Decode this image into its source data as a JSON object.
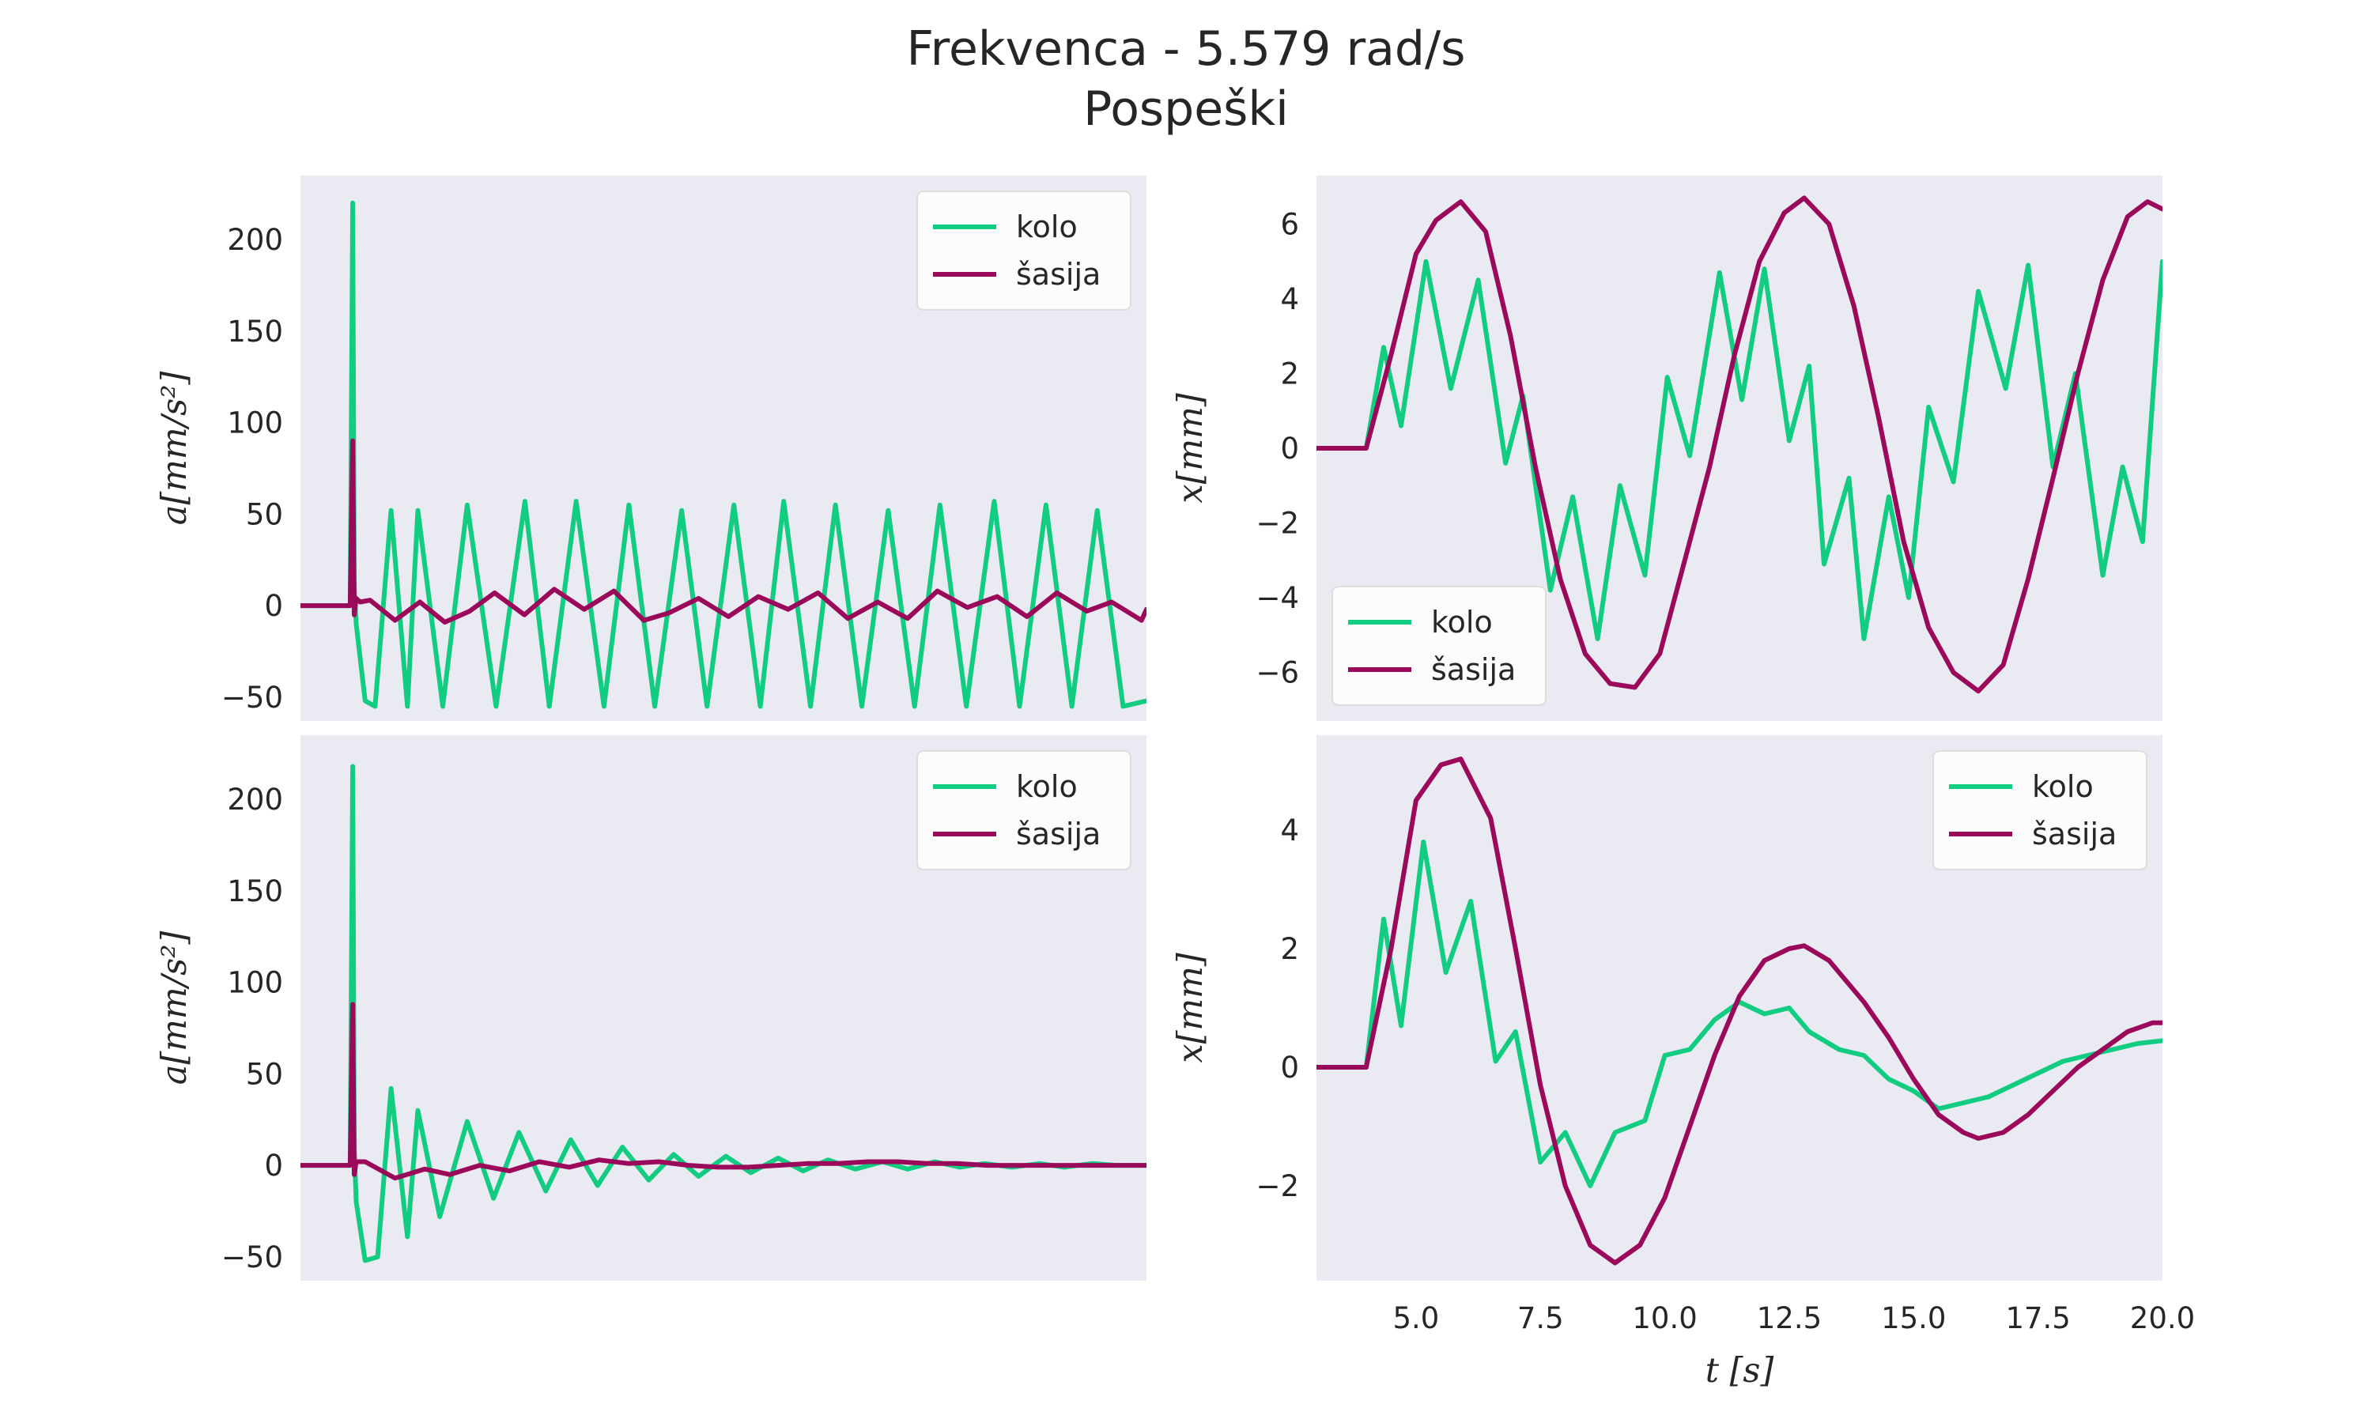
{
  "figure": {
    "title_line1": "Frekvenca - 5.579 rad/s",
    "title_line2": "Pospeški"
  },
  "colors": {
    "kolo": "#12cc82",
    "sasija": "#9b0a5a",
    "panel_bg": "#eaeaf2",
    "text": "#262626"
  },
  "chart_data": [
    {
      "type": "line",
      "panel": "top-left",
      "ylabel": "a[mm/s²]",
      "xlim": [
        3,
        20
      ],
      "ylim": [
        -63,
        235
      ],
      "yticks": [
        -50,
        0,
        50,
        100,
        150,
        200
      ],
      "ytick_labels": [
        "−50",
        "0",
        "50",
        "100",
        "150",
        "200"
      ],
      "legend": "top-right",
      "grid": false,
      "series": [
        {
          "name": "kolo",
          "color": "#12cc82",
          "x": [
            3.0,
            4.0,
            4.05,
            4.08,
            4.12,
            4.3,
            4.5,
            4.82,
            5.15,
            5.36,
            5.86,
            6.35,
            6.93,
            7.51,
            8.0,
            8.54,
            9.1,
            9.6,
            10.12,
            10.66,
            11.17,
            11.71,
            12.24,
            12.71,
            13.25,
            13.75,
            14.28,
            14.81,
            15.34,
            15.85,
            16.38,
            16.94,
            17.45,
            17.98,
            18.5,
            19.01,
            19.53,
            20.0
          ],
          "y": [
            0,
            0,
            220,
            10,
            -10,
            -52,
            -55,
            52,
            -55,
            52,
            -55,
            55,
            -55,
            57,
            -55,
            57,
            -55,
            55,
            -55,
            52,
            -55,
            55,
            -55,
            57,
            -55,
            55,
            -55,
            52,
            -55,
            55,
            -55,
            57,
            -55,
            55,
            -55,
            52,
            -55,
            -52
          ]
        },
        {
          "name": "šasija",
          "color": "#9b0a5a",
          "x": [
            3.0,
            4.0,
            4.05,
            4.08,
            4.12,
            4.2,
            4.4,
            4.9,
            5.4,
            5.9,
            6.4,
            6.9,
            7.5,
            8.1,
            8.7,
            9.3,
            9.9,
            10.4,
            11.0,
            11.6,
            12.2,
            12.8,
            13.4,
            14.0,
            14.6,
            15.2,
            15.8,
            16.4,
            17.0,
            17.6,
            18.2,
            18.8,
            19.3,
            19.9,
            20.0
          ],
          "y": [
            0,
            0,
            90,
            -5,
            4,
            2,
            3,
            -8,
            2,
            -9,
            -3,
            7,
            -5,
            9,
            -2,
            8,
            -8,
            -4,
            4,
            -6,
            5,
            -2,
            7,
            -7,
            2,
            -7,
            8,
            -1,
            5,
            -6,
            7,
            -3,
            2,
            -8,
            -2
          ]
        }
      ]
    },
    {
      "type": "line",
      "panel": "top-right",
      "ylabel": "x[mm]",
      "xlim": [
        3,
        20
      ],
      "ylim": [
        -7.3,
        7.3
      ],
      "yticks": [
        -6,
        -4,
        -2,
        0,
        2,
        4,
        6
      ],
      "ytick_labels": [
        "−6",
        "−4",
        "−2",
        "0",
        "2",
        "4",
        "6"
      ],
      "legend": "lower-left",
      "grid": false,
      "series": [
        {
          "name": "kolo",
          "color": "#12cc82",
          "x": [
            3.0,
            4.0,
            4.35,
            4.7,
            5.2,
            5.7,
            6.25,
            6.8,
            7.15,
            7.7,
            8.15,
            8.65,
            9.1,
            9.6,
            10.05,
            10.5,
            11.1,
            11.55,
            12.0,
            12.5,
            12.9,
            13.2,
            13.7,
            14.0,
            14.5,
            14.9,
            15.3,
            15.8,
            16.3,
            16.85,
            17.3,
            17.8,
            18.25,
            18.8,
            19.2,
            19.6,
            20.0
          ],
          "y": [
            0,
            0,
            2.7,
            0.6,
            5.0,
            1.6,
            4.5,
            -0.4,
            1.4,
            -3.8,
            -1.3,
            -5.1,
            -1.0,
            -3.4,
            1.9,
            -0.2,
            4.7,
            1.3,
            4.8,
            0.2,
            2.2,
            -3.1,
            -0.8,
            -5.1,
            -1.3,
            -4.0,
            1.1,
            -0.9,
            4.2,
            1.6,
            4.9,
            -0.5,
            2.0,
            -3.4,
            -0.5,
            -2.5,
            5.0
          ]
        },
        {
          "name": "šasija",
          "color": "#9b0a5a",
          "x": [
            3.0,
            4.0,
            4.5,
            5.0,
            5.4,
            5.9,
            6.4,
            6.9,
            7.4,
            7.9,
            8.4,
            8.9,
            9.4,
            9.9,
            10.4,
            10.9,
            11.4,
            11.9,
            12.4,
            12.8,
            13.3,
            13.8,
            14.3,
            14.8,
            15.3,
            15.8,
            16.3,
            16.8,
            17.3,
            17.8,
            18.3,
            18.8,
            19.3,
            19.7,
            20.0
          ],
          "y": [
            0,
            0,
            2.5,
            5.2,
            6.1,
            6.6,
            5.8,
            3.0,
            -0.5,
            -3.5,
            -5.5,
            -6.3,
            -6.4,
            -5.5,
            -3.0,
            -0.5,
            2.5,
            5.0,
            6.3,
            6.7,
            6.0,
            3.8,
            0.8,
            -2.5,
            -4.8,
            -6.0,
            -6.5,
            -5.8,
            -3.5,
            -0.8,
            2.0,
            4.5,
            6.2,
            6.6,
            6.4
          ]
        }
      ]
    },
    {
      "type": "line",
      "panel": "bottom-left",
      "ylabel": "a[mm/s²]",
      "xlim": [
        3,
        20
      ],
      "ylim": [
        -63,
        235
      ],
      "yticks": [
        -50,
        0,
        50,
        100,
        150,
        200
      ],
      "ytick_labels": [
        "−50",
        "0",
        "50",
        "100",
        "150",
        "200"
      ],
      "legend": "top-right",
      "grid": false,
      "series": [
        {
          "name": "kolo",
          "color": "#12cc82",
          "x": [
            3.0,
            4.0,
            4.05,
            4.08,
            4.12,
            4.3,
            4.55,
            4.82,
            5.15,
            5.36,
            5.8,
            6.35,
            6.88,
            7.39,
            7.93,
            8.43,
            8.97,
            9.47,
            10.0,
            10.5,
            11.0,
            11.55,
            12.05,
            12.6,
            13.1,
            13.6,
            14.15,
            14.7,
            15.2,
            15.75,
            16.25,
            16.75,
            17.3,
            17.85,
            18.35,
            18.9,
            19.4,
            20.0
          ],
          "y": [
            0,
            0,
            218,
            10,
            -20,
            -52,
            -50,
            42,
            -39,
            30,
            -28,
            24,
            -18,
            18,
            -14,
            14,
            -11,
            10,
            -8,
            6,
            -6,
            5,
            -4,
            4,
            -3,
            3,
            -2,
            2,
            -2,
            2,
            -1,
            1,
            -1,
            1,
            -1,
            1,
            0,
            0
          ]
        },
        {
          "name": "šasija",
          "color": "#9b0a5a",
          "x": [
            3.0,
            4.0,
            4.05,
            4.08,
            4.12,
            4.3,
            4.9,
            5.5,
            6.0,
            6.6,
            7.2,
            7.8,
            8.4,
            9.0,
            9.6,
            10.2,
            10.8,
            11.4,
            12.0,
            12.6,
            13.2,
            13.8,
            14.4,
            15.0,
            15.6,
            16.2,
            16.8,
            17.4,
            18.0,
            18.6,
            19.2,
            20.0
          ],
          "y": [
            0,
            0,
            88,
            -5,
            2,
            2,
            -7,
            -2,
            -5,
            0,
            -3,
            2,
            -1,
            3,
            1,
            2,
            0,
            -1,
            -1,
            0,
            1,
            1,
            2,
            2,
            1,
            1,
            0,
            0,
            0,
            0,
            0,
            0
          ]
        }
      ]
    },
    {
      "type": "line",
      "panel": "bottom-right",
      "ylabel": "x[mm]",
      "xlabel": "t [s]",
      "xlim": [
        3,
        20
      ],
      "ylim": [
        -3.6,
        5.6
      ],
      "xticks": [
        5.0,
        7.5,
        10.0,
        12.5,
        15.0,
        17.5,
        20.0
      ],
      "xtick_labels": [
        "5.0",
        "7.5",
        "10.0",
        "12.5",
        "15.0",
        "17.5",
        "20.0"
      ],
      "yticks": [
        -2,
        0,
        2,
        4
      ],
      "ytick_labels": [
        "−2",
        "0",
        "2",
        "4"
      ],
      "legend": "top-right",
      "grid": false,
      "series": [
        {
          "name": "kolo",
          "color": "#12cc82",
          "x": [
            3.0,
            4.0,
            4.35,
            4.7,
            5.15,
            5.6,
            6.1,
            6.6,
            7.0,
            7.5,
            8.0,
            8.5,
            9.0,
            9.6,
            10.0,
            10.5,
            11.0,
            11.5,
            12.0,
            12.5,
            12.9,
            13.5,
            14.0,
            14.5,
            15.0,
            15.5,
            16.0,
            16.5,
            17.0,
            17.5,
            18.0,
            18.5,
            19.0,
            19.5,
            20.0
          ],
          "y": [
            0,
            0,
            2.5,
            0.7,
            3.8,
            1.6,
            2.8,
            0.1,
            0.6,
            -1.6,
            -1.1,
            -2.0,
            -1.1,
            -0.9,
            0.2,
            0.3,
            0.8,
            1.1,
            0.9,
            1.0,
            0.6,
            0.3,
            0.2,
            -0.2,
            -0.4,
            -0.7,
            -0.6,
            -0.5,
            -0.3,
            -0.1,
            0.1,
            0.2,
            0.3,
            0.4,
            0.45
          ]
        },
        {
          "name": "šasija",
          "color": "#9b0a5a",
          "x": [
            3.0,
            4.0,
            4.5,
            5.0,
            5.5,
            5.9,
            6.5,
            7.0,
            7.5,
            8.0,
            8.5,
            9.0,
            9.5,
            10.0,
            10.5,
            11.0,
            11.5,
            12.0,
            12.5,
            12.8,
            13.3,
            14.0,
            14.5,
            15.0,
            15.5,
            16.0,
            16.3,
            16.8,
            17.3,
            17.8,
            18.3,
            18.8,
            19.3,
            19.8,
            20.0
          ],
          "y": [
            0,
            0,
            2.0,
            4.5,
            5.1,
            5.2,
            4.2,
            2.0,
            -0.3,
            -2.0,
            -3.0,
            -3.3,
            -3.0,
            -2.2,
            -1.0,
            0.2,
            1.2,
            1.8,
            2.0,
            2.05,
            1.8,
            1.1,
            0.5,
            -0.2,
            -0.8,
            -1.1,
            -1.2,
            -1.1,
            -0.8,
            -0.4,
            0.0,
            0.3,
            0.6,
            0.75,
            0.75
          ]
        }
      ]
    }
  ]
}
